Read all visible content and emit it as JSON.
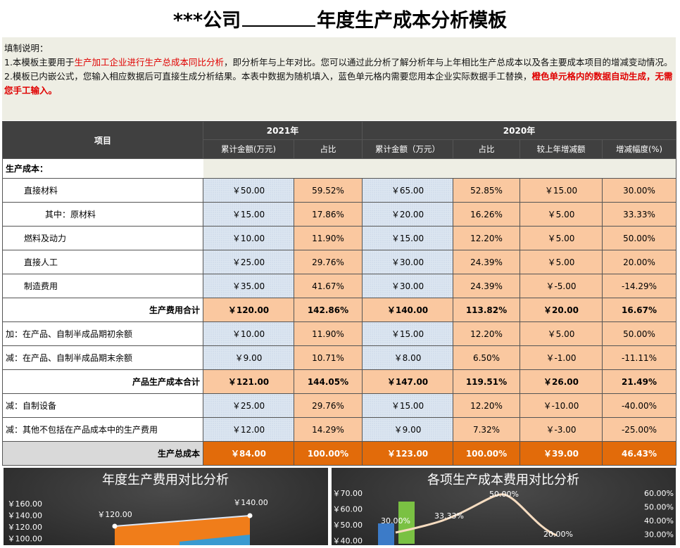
{
  "header": {
    "title_left": "***公司",
    "title_right": "年度生产成本分析模板"
  },
  "notes": {
    "label": "填制说明：",
    "p1": [
      "1.本模板主要用于",
      "生产加工企业进行生产总成本同比分析",
      "，即分析年与上年对比。您可以通过此分析了解分析年与上年相比生产总成本以及各主要成本项目的增减变动情况。"
    ],
    "p2": [
      "2.模板已内嵌公式，您输入相应数据后可直接生成分析结果。本表中数据为随机填入，蓝色单元格内需要您用本企业实际数据手工替换，",
      "橙色单元格内的数据自动生成，无需您手工输入。"
    ]
  },
  "table": {
    "item_header": "项目",
    "year1": "2021年",
    "year2": "2020年",
    "columns": [
      "累计金额(万元)",
      "占比",
      "累计金额（万元）",
      "占比",
      "较上年增减额",
      "增减幅度(%)"
    ],
    "section": "生产成本：",
    "rows": [
      {
        "label": "直接材料",
        "cells": [
          "￥50.00",
          "59.52%",
          "￥65.00",
          "52.85%",
          "￥15.00",
          "30.00%"
        ]
      },
      {
        "label": "其中：原材料",
        "cells": [
          "￥15.00",
          "17.86%",
          "￥20.00",
          "16.26%",
          "￥5.00",
          "33.33%"
        ]
      },
      {
        "label": "燃料及动力",
        "cells": [
          "￥10.00",
          "11.90%",
          "￥15.00",
          "12.20%",
          "￥5.00",
          "50.00%"
        ]
      },
      {
        "label": "直接人工",
        "cells": [
          "￥25.00",
          "29.76%",
          "￥30.00",
          "24.39%",
          "￥5.00",
          "20.00%"
        ]
      },
      {
        "label": "制造费用",
        "cells": [
          "￥35.00",
          "41.67%",
          "￥30.00",
          "24.39%",
          "￥-5.00",
          "-14.29%"
        ]
      },
      {
        "label": "生产费用合计",
        "cells": [
          "￥120.00",
          "142.86%",
          "￥140.00",
          "113.82%",
          "￥20.00",
          "16.67%"
        ]
      },
      {
        "label": "加：在产品、自制半成品期初余额",
        "cells": [
          "￥10.00",
          "11.90%",
          "￥15.00",
          "12.20%",
          "￥5.00",
          "50.00%"
        ]
      },
      {
        "label": "减：在产品、自制半成品期末余额",
        "cells": [
          "￥9.00",
          "10.71%",
          "￥8.00",
          "6.50%",
          "￥-1.00",
          "-11.11%"
        ]
      },
      {
        "label": "产品生产成本合计",
        "cells": [
          "￥121.00",
          "144.05%",
          "￥147.00",
          "119.51%",
          "￥26.00",
          "21.49%"
        ]
      },
      {
        "label": "减：自制设备",
        "cells": [
          "￥25.00",
          "29.76%",
          "￥15.00",
          "12.20%",
          "￥-10.00",
          "-40.00%"
        ]
      },
      {
        "label": "减：其他不包括在产品成本中的生产费用",
        "cells": [
          "￥12.00",
          "14.29%",
          "￥9.00",
          "7.32%",
          "￥-3.00",
          "-25.00%"
        ]
      },
      {
        "label": "生产总成本",
        "cells": [
          "￥84.00",
          "100.00%",
          "￥123.00",
          "100.00%",
          "￥39.00",
          "46.43%"
        ]
      }
    ]
  },
  "chart_left": {
    "title": "年度生产费用对比分析",
    "yticks": [
      "￥160.00",
      "￥140.00",
      "￥120.00",
      "￥100.00"
    ],
    "labels": [
      "￥120.00",
      "￥140.00"
    ]
  },
  "chart_right": {
    "title": "各项生产成本费用对比分析",
    "yticks": [
      "￥70.00",
      "￥60.00",
      "￥50.00",
      "￥40.00"
    ],
    "y2ticks": [
      "60.00%",
      "50.00%",
      "40.00%",
      "30.00%"
    ],
    "labels": [
      "30.00%",
      "33.33%",
      "50.00%",
      "20.00%"
    ]
  }
}
